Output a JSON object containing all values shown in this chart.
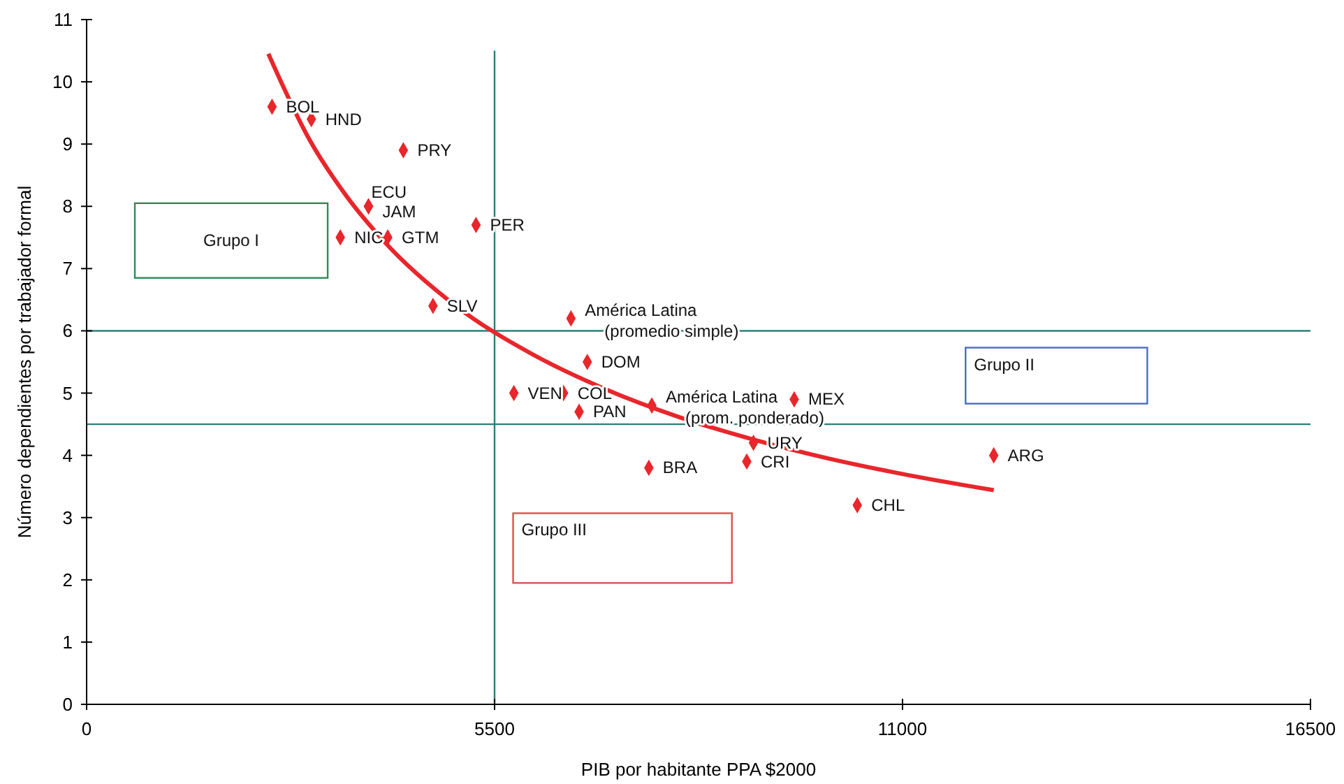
{
  "chart_data": {
    "type": "scatter",
    "xlabel": "PIB por habitante PPA $2000",
    "ylabel": "Número dependientes por trabajador formal",
    "xlim": [
      0,
      16500
    ],
    "xticks": [
      0,
      5500,
      11000,
      16500
    ],
    "ylim": [
      0,
      11
    ],
    "yticks": [
      0,
      1,
      2,
      3,
      4,
      5,
      6,
      7,
      8,
      9,
      10,
      11
    ],
    "grid": false,
    "marker": "diamond",
    "series": [
      {
        "color": "#e8262b",
        "x": [
          2500,
          3030,
          4270,
          3800,
          3800,
          3420,
          4060,
          5250,
          4670,
          6530,
          6750,
          5760,
          6430,
          6640,
          7620,
          9540,
          8990,
          8900,
          7580,
          10390,
          12230
        ],
        "values": [
          9.6,
          9.4,
          8.9,
          8.0,
          8.0,
          7.5,
          7.5,
          7.7,
          6.4,
          6.2,
          5.5,
          5.0,
          5.0,
          4.7,
          4.8,
          4.9,
          4.2,
          3.9,
          3.8,
          3.2,
          4.0
        ],
        "value_labels": [
          "BOL",
          "HND",
          "PRY",
          "ECU",
          "JAM",
          "NIC",
          "GTM",
          "PER",
          "SLV",
          "América Latina (promedio simple)",
          "DOM",
          "VEN",
          "COL",
          "PAN",
          "América Latina (prom. ponderado)",
          "MEX",
          "URY",
          "CRI",
          "BRA",
          "CHL",
          "ARG"
        ]
      },
      {
        "type": "line",
        "color": "#e8262b",
        "marker": "none",
        "line_style": "solid",
        "x": [
          2450,
          3000,
          3500,
          4000,
          5000,
          6000,
          7000,
          8000,
          9000,
          10000,
          11000,
          12230
        ],
        "values": [
          10.45,
          9.08,
          8.17,
          7.45,
          6.38,
          5.63,
          5.06,
          4.61,
          4.25,
          3.95,
          3.7,
          3.44
        ]
      }
    ],
    "ref_lines": [
      {
        "axis": "x",
        "value": 5500,
        "color": "#2e7d78"
      },
      {
        "axis": "y",
        "value": 6,
        "color": "#2e7d78"
      },
      {
        "axis": "y",
        "value": 4.5,
        "color": "#2e7d78"
      }
    ],
    "annotations": [
      "Grupo I",
      "Grupo II",
      "Grupo III"
    ]
  }
}
